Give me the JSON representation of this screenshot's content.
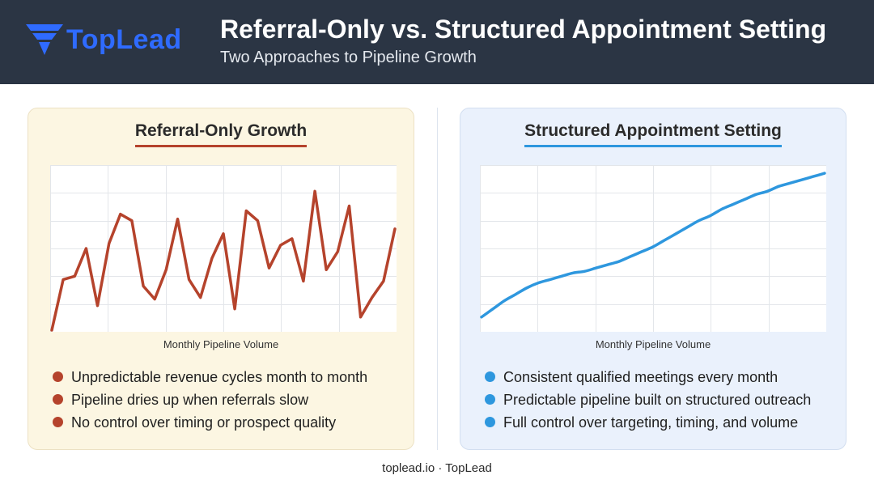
{
  "header": {
    "logo_text": "TopLead",
    "title": "Referral-Only vs. Structured Appointment Setting",
    "subtitle": "Two Approaches to Pipeline Growth"
  },
  "colors": {
    "header_bg": "#2b3544",
    "logo_blue": "#2f6bff",
    "referral_red": "#b5432c",
    "structured_blue": "#2e97de",
    "left_panel_bg": "#fcf6e2",
    "right_panel_bg": "#eaf1fc"
  },
  "left_panel": {
    "title": "Referral-Only Growth",
    "bullets": [
      "Unpredictable revenue cycles month to month",
      "Pipeline dries up when referrals slow",
      "No control over timing or prospect quality"
    ]
  },
  "right_panel": {
    "title": "Structured Appointment Setting",
    "bullets": [
      "Consistent qualified meetings every month",
      "Predictable pipeline built on structured outreach",
      "Full control over targeting, timing, and volume"
    ]
  },
  "chart_data": [
    {
      "type": "line",
      "xlabel": "Monthly Pipeline Volume",
      "ylabel": "",
      "grid": true,
      "x": [
        1,
        2,
        3,
        4,
        5,
        6,
        7,
        8,
        9,
        10,
        11,
        12,
        13,
        14,
        15,
        16,
        17,
        18,
        19,
        20,
        21,
        22,
        23,
        24,
        25,
        26,
        27,
        28,
        29,
        30,
        31
      ],
      "series": [
        {
          "color": "#b5432c",
          "values": [
            0,
            31,
            33,
            50,
            15,
            53,
            71,
            67,
            27,
            19,
            37,
            68,
            31,
            20,
            44,
            59,
            13,
            73,
            67,
            38,
            52,
            56,
            30,
            85,
            37,
            48,
            76,
            8,
            20,
            30,
            62
          ]
        }
      ],
      "ylim": [
        0,
        100
      ]
    },
    {
      "type": "line",
      "xlabel": "Monthly Pipeline Volume",
      "ylabel": "",
      "grid": true,
      "x": [
        1,
        2,
        3,
        4,
        5,
        6,
        7,
        8,
        9,
        10,
        11,
        12,
        13,
        14,
        15,
        16,
        17,
        18,
        19,
        20,
        21,
        22,
        23,
        24,
        25,
        26,
        27,
        28,
        29,
        30,
        31
      ],
      "series": [
        {
          "color": "#2e97de",
          "values": [
            8,
            13,
            18,
            22,
            26,
            29,
            31,
            33,
            35,
            36,
            38,
            40,
            42,
            45,
            48,
            51,
            55,
            59,
            63,
            67,
            70,
            74,
            77,
            80,
            83,
            85,
            88,
            90,
            92,
            94,
            96
          ]
        }
      ],
      "ylim": [
        0,
        100
      ]
    }
  ],
  "footer": {
    "text": "toplead.io · TopLead"
  }
}
